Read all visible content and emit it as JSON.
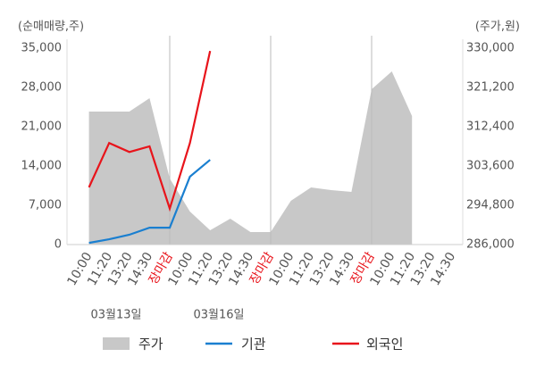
{
  "chart_data": {
    "type": "line",
    "y_label": "(순매매량,주)",
    "y2_label": "(주가,원)",
    "categories": [
      "10:00",
      "11:20",
      "13:20",
      "14:30",
      "장마감",
      "10:00",
      "11:20",
      "13:20",
      "14:30",
      "장마감",
      "10:00",
      "11:20",
      "13:20",
      "14:30",
      "장마감",
      "10:00",
      "11:20",
      "13:20",
      "14:30"
    ],
    "dates": [
      "03월13일",
      "03월16일"
    ],
    "highlight": {
      "indices": [
        4,
        9,
        14
      ],
      "color": "#e8141b"
    },
    "ylim": [
      0,
      35000
    ],
    "yticks": [
      0,
      {
        "value": 7000,
        "label": "7,000"
      },
      {
        "value": 14000,
        "label": "14,000"
      },
      {
        "value": 21000,
        "label": "21,000"
      },
      {
        "value": 28000,
        "label": "28,000"
      },
      {
        "value": 35000,
        "label": "35,000"
      }
    ],
    "y2lim": [
      286000,
      330000
    ],
    "y2ticks": [
      {
        "value": 286000,
        "label": "286,000"
      },
      {
        "value": 294800,
        "label": "294,800"
      },
      {
        "value": 303600,
        "label": "303,600"
      },
      {
        "value": 312400,
        "label": "312,400"
      },
      {
        "value": 321200,
        "label": "321,200"
      },
      {
        "value": 330000,
        "label": "330,000"
      }
    ],
    "series": [
      {
        "name": "주가",
        "color": "#c8c8c8",
        "kind": "area",
        "axis": "y2",
        "values": [
          315800,
          315800,
          315800,
          318800,
          300800,
          293400,
          289200,
          291800,
          288800,
          288800,
          295800,
          298800,
          298200,
          297800,
          320800,
          324800,
          314800,
          null,
          null
        ]
      },
      {
        "name": "기관",
        "color": "#1a7fd0",
        "kind": "line",
        "values": [
          300,
          950,
          1750,
          3000,
          3000,
          12100,
          15100,
          null,
          null,
          null,
          null,
          null,
          null,
          null,
          null,
          null,
          null,
          null,
          null
        ]
      },
      {
        "name": "외국인",
        "color": "#e8141b",
        "kind": "line",
        "values": [
          10200,
          18100,
          16500,
          17500,
          6400,
          18100,
          34500,
          null,
          null,
          null,
          null,
          null,
          null,
          null,
          null,
          null,
          null,
          null,
          null
        ]
      }
    ]
  }
}
